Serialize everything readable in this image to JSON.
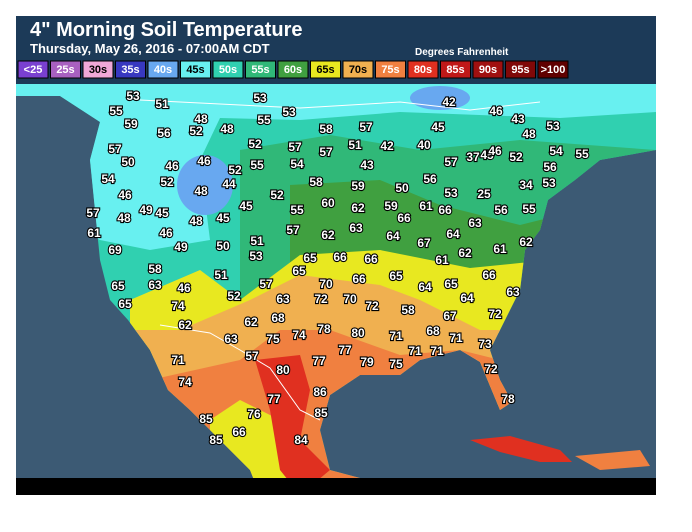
{
  "header": {
    "title": "4\" Morning Soil Temperature",
    "subtitle": "Thursday, May 26, 2016 - 07:00AM CDT",
    "units": "Degrees Fahrenheit"
  },
  "legend": [
    {
      "label": "<25",
      "color": "#7a40d0"
    },
    {
      "label": "25s",
      "color": "#a860c0"
    },
    {
      "label": "30s",
      "color": "#f0a8d8"
    },
    {
      "label": "35s",
      "color": "#3838c0"
    },
    {
      "label": "40s",
      "color": "#68a8f0"
    },
    {
      "label": "45s",
      "color": "#68f0f0"
    },
    {
      "label": "50s",
      "color": "#30d0b0"
    },
    {
      "label": "55s",
      "color": "#30b878"
    },
    {
      "label": "60s",
      "color": "#40a040"
    },
    {
      "label": "65s",
      "color": "#e8e820"
    },
    {
      "label": "70s",
      "color": "#f0b050"
    },
    {
      "label": "75s",
      "color": "#f08040"
    },
    {
      "label": "80s",
      "color": "#e03020"
    },
    {
      "label": "85s",
      "color": "#c01818"
    },
    {
      "label": "90s",
      "color": "#a01010"
    },
    {
      "label": "95s",
      "color": "#800808"
    },
    {
      "label": ">100",
      "color": "#600000"
    }
  ],
  "readings": [
    53,
    53,
    42,
    46,
    43,
    51,
    53,
    55,
    48,
    55,
    59,
    52,
    48,
    58,
    57,
    45,
    48,
    53,
    56,
    57,
    52,
    57,
    51,
    42,
    40,
    57,
    45,
    46,
    52,
    54,
    55,
    50,
    46,
    46,
    52,
    55,
    54,
    43,
    57,
    37,
    56,
    54,
    52,
    48,
    44,
    58,
    56,
    34,
    53,
    59,
    50,
    25,
    46,
    52,
    53,
    57,
    49,
    45,
    45,
    55,
    60,
    62,
    59,
    61,
    66,
    56,
    55,
    48,
    48,
    45,
    66,
    63,
    61,
    46,
    57,
    62,
    63,
    64,
    67,
    64,
    62,
    61,
    62,
    69,
    49,
    50,
    51,
    53,
    65,
    66,
    66,
    61,
    58,
    51,
    65,
    66,
    65,
    66,
    65,
    63,
    46,
    57,
    70,
    64,
    65,
    63,
    65,
    74,
    52,
    63,
    72,
    70,
    72,
    64,
    62,
    62,
    68,
    58,
    67,
    72,
    63,
    75,
    74,
    78,
    80,
    71,
    68,
    71,
    73,
    77,
    57,
    77,
    71,
    79,
    75,
    71,
    71,
    80,
    74,
    86,
    72,
    77,
    78,
    85,
    85,
    76,
    85,
    66,
    84
  ]
}
